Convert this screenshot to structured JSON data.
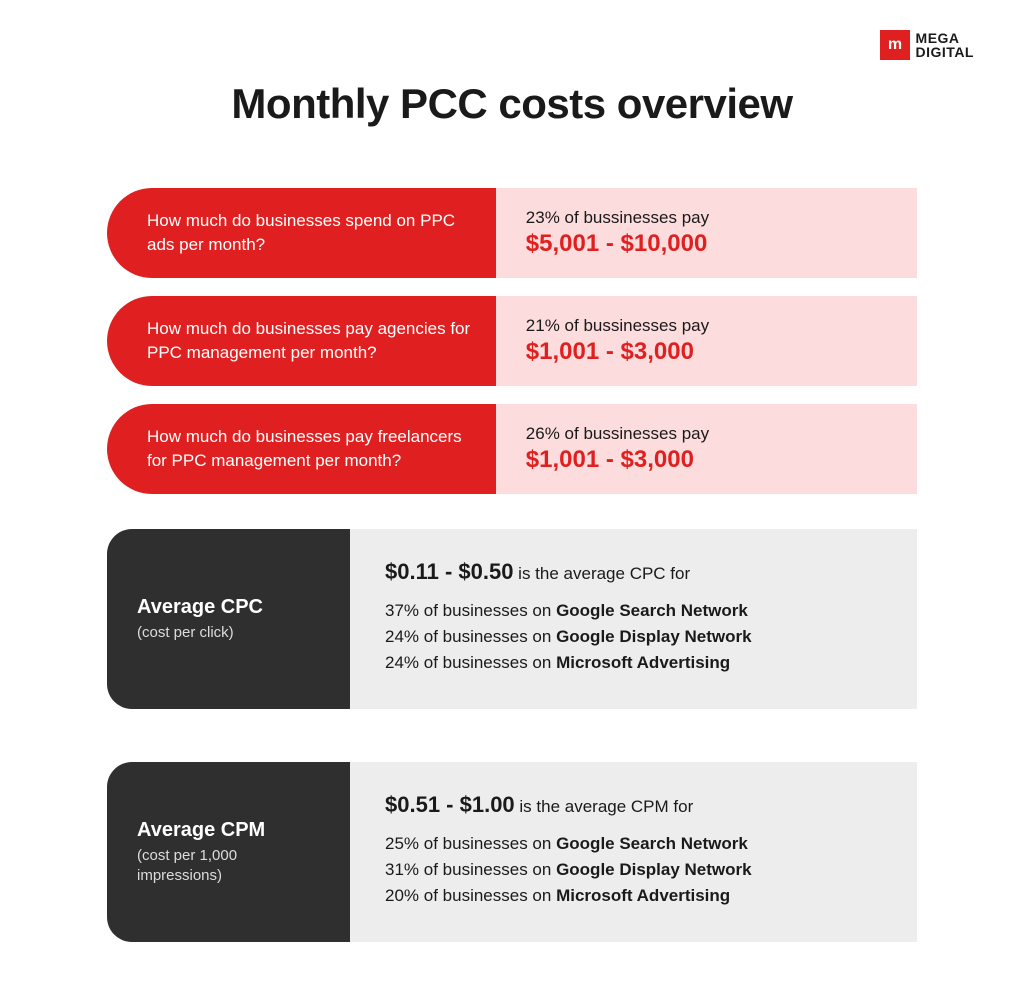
{
  "logo": {
    "mark": "m",
    "line1": "MEGA",
    "line2": "DIGITAL"
  },
  "title": "Monthly PCC costs overview",
  "colors": {
    "red_primary": "#e02020",
    "red_light": "#fcdcdc",
    "dark": "#2f2f2f",
    "grey_light": "#ededed",
    "text": "#1a1a1a",
    "white": "#ffffff"
  },
  "red_rows": [
    {
      "question": "How much do businesses spend on PPC ads per month?",
      "percent": "23% of bussinesses pay",
      "amount": "$5,001 - $10,000"
    },
    {
      "question": "How much do businesses pay agencies for PPC management per month?",
      "percent": "21% of bussinesses pay",
      "amount": "$1,001 - $3,000"
    },
    {
      "question": "How much do businesses pay freelancers for PPC management per month?",
      "percent": "26% of bussinesses pay",
      "amount": "$1,001 - $3,000"
    }
  ],
  "dark_rows": [
    {
      "title": "Average CPC",
      "sub": "(cost per click)",
      "range": "$0.11 - $0.50",
      "range_suffix": " is the average CPC for",
      "nets": [
        {
          "pct": "37%",
          "mid": " of businesses on ",
          "net": "Google Search Network"
        },
        {
          "pct": "24%",
          "mid": " of businesses on ",
          "net": "Google Display Network"
        },
        {
          "pct": "24%",
          "mid": " of businesses on ",
          "net": "Microsoft Advertising"
        }
      ]
    },
    {
      "title": "Average CPM",
      "sub": "(cost per 1,000 impressions)",
      "range": "$0.51 - $1.00",
      "range_suffix": " is the average CPM for",
      "nets": [
        {
          "pct": "25%",
          "mid": " of businesses on ",
          "net": "Google Search Network"
        },
        {
          "pct": "31%",
          "mid": " of businesses on ",
          "net": "Google Display Network"
        },
        {
          "pct": "20%",
          "mid": " of businesses on ",
          "net": "Microsoft Advertising"
        }
      ]
    }
  ]
}
